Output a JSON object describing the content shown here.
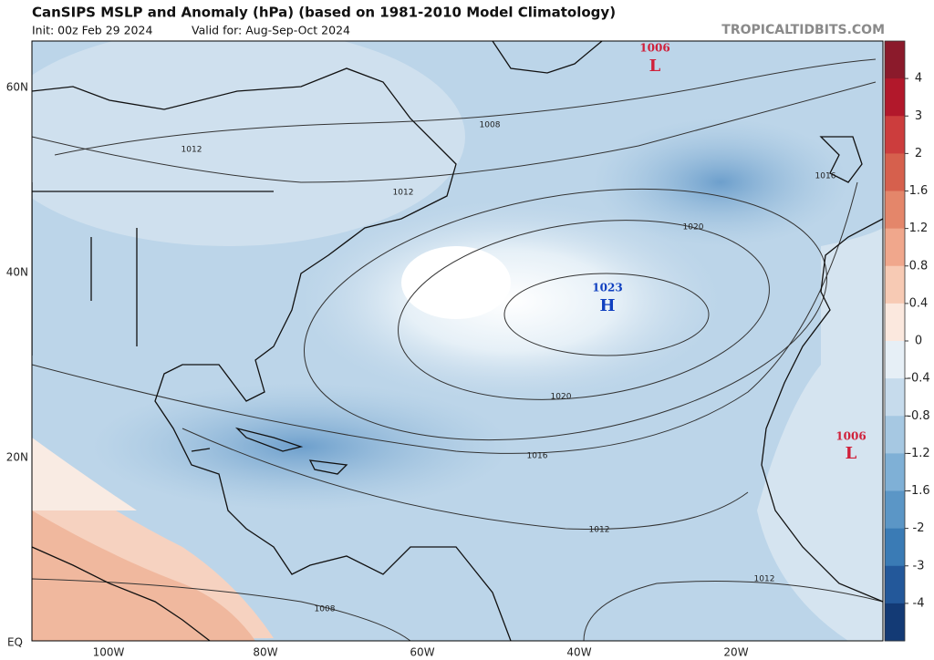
{
  "header": {
    "title": "CanSIPS MSLP and Anomaly (hPa) (based on 1981-2010 Model Climatology)",
    "init": "Init: 00z Feb 29 2024",
    "valid": "Valid for: Aug-Sep-Oct 2024",
    "site": "TROPICALTIDBITS.COM"
  },
  "map": {
    "lat_labels": [
      "60N",
      "40N",
      "20N",
      "EQ"
    ],
    "lon_labels": [
      "100W",
      "80W",
      "60W",
      "40W",
      "20W"
    ],
    "contour_labels": [
      "1008",
      "1012",
      "1012",
      "1016",
      "1020",
      "1020",
      "1016",
      "1012",
      "1012",
      "1008"
    ],
    "centers": [
      {
        "value": "1006",
        "symbol": "L"
      },
      {
        "value": "1023",
        "symbol": "H"
      },
      {
        "value": "1006",
        "symbol": "L"
      }
    ]
  },
  "colorbar": {
    "labels": [
      "4",
      "3",
      "2",
      "1.6",
      "1.2",
      "0.8",
      "0.4",
      "0",
      "-0.4",
      "-0.8",
      "-1.2",
      "-1.6",
      "-2",
      "-3",
      "-4"
    ]
  }
}
